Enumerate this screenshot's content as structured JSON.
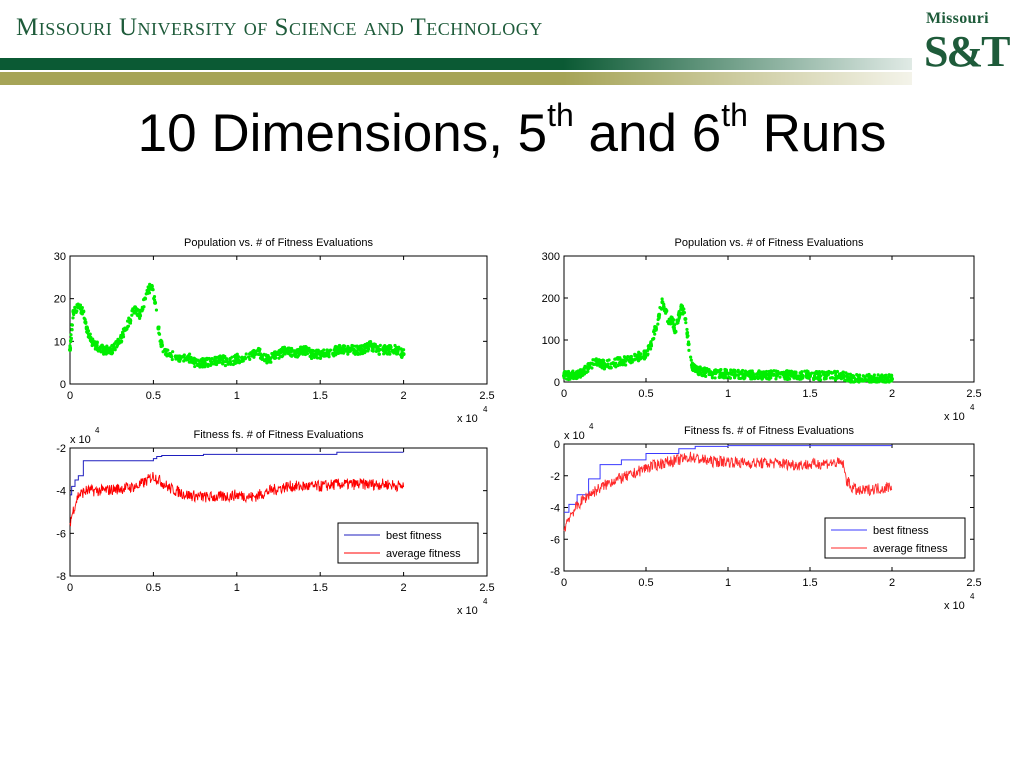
{
  "header": {
    "university": "Missouri University of Science and Technology",
    "logo_top": "Missouri",
    "logo_main": "S&T",
    "colors": {
      "green": "#0b5a34",
      "gold": "#a6a457"
    }
  },
  "title": {
    "prefix": "10 Dimensions, 5",
    "sup1": "th",
    "middle": " and 6",
    "sup2": "th",
    "suffix": " Runs"
  },
  "chart_data": [
    {
      "type": "scatter",
      "title": "Population vs. # of Fitness Evaluations",
      "xlabel": "",
      "ylabel": "",
      "xlim": [
        0,
        2.5
      ],
      "ylim": [
        0,
        30
      ],
      "xticks": [
        "0",
        "0.5",
        "1",
        "1.5",
        "2",
        "2.5"
      ],
      "yticks": [
        "0",
        "10",
        "20",
        "30"
      ],
      "x_multiplier": "x 10",
      "x_multiplier_exp": "4",
      "color": "#00ee00",
      "series": [
        {
          "x": [
            0.0,
            0.02,
            0.05,
            0.08,
            0.1,
            0.13,
            0.16,
            0.2,
            0.25,
            0.3,
            0.33,
            0.36,
            0.39,
            0.42,
            0.45,
            0.47,
            0.49,
            0.51,
            0.53,
            0.55,
            0.57,
            0.6,
            0.65,
            0.7,
            0.72,
            0.75,
            0.8,
            0.85,
            0.9,
            0.95,
            1.0,
            1.05,
            1.1,
            1.13,
            1.15,
            1.2,
            1.25,
            1.3,
            1.35,
            1.4,
            1.45,
            1.5,
            1.55,
            1.6,
            1.65,
            1.7,
            1.75,
            1.8,
            1.85,
            1.9,
            1.95,
            2.0
          ],
          "y": [
            8,
            17,
            18,
            17,
            13,
            10,
            9,
            8,
            8,
            10,
            13,
            15,
            18,
            16,
            20,
            22,
            23,
            19,
            13,
            9,
            8,
            7,
            6,
            6,
            6,
            5,
            5,
            5,
            6,
            5,
            6,
            6,
            7,
            8,
            6,
            6,
            7,
            8,
            7,
            8,
            7,
            7,
            7,
            8,
            8,
            8,
            8,
            9,
            8,
            8,
            8,
            7
          ]
        }
      ]
    },
    {
      "type": "line",
      "title": "Fitness fs. # of Fitness Evaluations",
      "xlabel": "",
      "ylabel": "",
      "xlim": [
        0,
        2.5
      ],
      "ylim": [
        -8,
        -2
      ],
      "xticks": [
        "0",
        "0.5",
        "1",
        "1.5",
        "2",
        "2.5"
      ],
      "yticks": [
        "-8",
        "-6",
        "-4",
        "-2"
      ],
      "x_multiplier": "x 10",
      "x_multiplier_exp": "4",
      "y_multiplier": "x 10",
      "y_multiplier_exp": "4",
      "legend_position": "bottom-right",
      "series": [
        {
          "name": "best fitness",
          "color": "#1f1fbf",
          "x": [
            0.0,
            0.01,
            0.03,
            0.05,
            0.08,
            0.5,
            0.52,
            0.55,
            0.8,
            1.0,
            1.6,
            2.0
          ],
          "y": [
            -4.2,
            -3.8,
            -3.5,
            -3.3,
            -2.6,
            -2.5,
            -2.4,
            -2.35,
            -2.3,
            -2.3,
            -2.2,
            -2.2
          ]
        },
        {
          "name": "average fitness",
          "color": "#ff0000",
          "x": [
            0.0,
            0.02,
            0.05,
            0.1,
            0.2,
            0.3,
            0.4,
            0.45,
            0.5,
            0.55,
            0.6,
            0.7,
            0.8,
            0.9,
            1.0,
            1.1,
            1.2,
            1.3,
            1.4,
            1.5,
            1.6,
            1.7,
            1.8,
            1.9,
            2.0
          ],
          "y": [
            -5.5,
            -4.9,
            -4.2,
            -4.0,
            -4.0,
            -3.9,
            -3.8,
            -3.6,
            -3.3,
            -3.6,
            -3.9,
            -4.2,
            -4.3,
            -4.3,
            -4.2,
            -4.3,
            -4.0,
            -3.8,
            -3.8,
            -3.8,
            -3.7,
            -3.7,
            -3.7,
            -3.7,
            -3.8
          ]
        }
      ]
    },
    {
      "type": "scatter",
      "title": "Population vs. # of Fitness Evaluations",
      "xlabel": "",
      "ylabel": "",
      "xlim": [
        0,
        2.5
      ],
      "ylim": [
        0,
        300
      ],
      "xticks": [
        "0",
        "0.5",
        "1",
        "1.5",
        "2",
        "2.5"
      ],
      "yticks": [
        "0",
        "100",
        "200",
        "300"
      ],
      "x_multiplier": "x 10",
      "x_multiplier_exp": "4",
      "color": "#00ee00",
      "series": [
        {
          "x": [
            0.0,
            0.05,
            0.1,
            0.15,
            0.2,
            0.25,
            0.3,
            0.35,
            0.4,
            0.45,
            0.5,
            0.53,
            0.56,
            0.58,
            0.6,
            0.62,
            0.64,
            0.66,
            0.68,
            0.7,
            0.72,
            0.74,
            0.76,
            0.78,
            0.8,
            0.85,
            0.9,
            1.0,
            1.1,
            1.2,
            1.3,
            1.4,
            1.5,
            1.6,
            1.7,
            1.75,
            1.8,
            1.9,
            2.0
          ],
          "y": [
            15,
            15,
            20,
            35,
            50,
            40,
            45,
            50,
            50,
            60,
            65,
            90,
            130,
            160,
            190,
            170,
            140,
            150,
            120,
            160,
            180,
            150,
            90,
            40,
            30,
            25,
            20,
            20,
            18,
            17,
            17,
            16,
            16,
            15,
            15,
            8,
            8,
            7,
            7
          ]
        }
      ]
    },
    {
      "type": "line",
      "title": "Fitness fs. # of Fitness Evaluations",
      "xlabel": "",
      "ylabel": "",
      "xlim": [
        0,
        2.5
      ],
      "ylim": [
        -8,
        0
      ],
      "xticks": [
        "0",
        "0.5",
        "1",
        "1.5",
        "2",
        "2.5"
      ],
      "yticks": [
        "-8",
        "-6",
        "-4",
        "-2",
        "0"
      ],
      "x_multiplier": "x 10",
      "x_multiplier_exp": "4",
      "y_multiplier": "x 10",
      "y_multiplier_exp": "4",
      "legend_position": "bottom-right",
      "series": [
        {
          "name": "best fitness",
          "color": "#3a3aff",
          "x": [
            0.0,
            0.03,
            0.08,
            0.15,
            0.22,
            0.35,
            0.5,
            0.7,
            0.8,
            1.0,
            1.5,
            2.0
          ],
          "y": [
            -4.3,
            -3.8,
            -3.2,
            -2.2,
            -1.3,
            -1.0,
            -0.6,
            -0.3,
            -0.15,
            -0.1,
            -0.1,
            -0.1
          ]
        },
        {
          "name": "average fitness",
          "color": "#ff2a2a",
          "x": [
            0.0,
            0.02,
            0.05,
            0.1,
            0.15,
            0.2,
            0.3,
            0.4,
            0.5,
            0.6,
            0.7,
            0.78,
            0.8,
            0.9,
            1.0,
            1.1,
            1.2,
            1.3,
            1.4,
            1.5,
            1.6,
            1.7,
            1.72,
            1.75,
            1.8,
            1.85,
            1.9,
            1.95,
            2.0
          ],
          "y": [
            -5.5,
            -4.8,
            -4.3,
            -3.7,
            -3.2,
            -2.9,
            -2.3,
            -2.0,
            -1.5,
            -1.2,
            -1.0,
            -0.8,
            -0.9,
            -1.1,
            -1.1,
            -1.2,
            -1.2,
            -1.2,
            -1.3,
            -1.3,
            -1.2,
            -1.2,
            -2.2,
            -2.7,
            -3.0,
            -2.9,
            -2.8,
            -2.8,
            -2.6
          ]
        }
      ]
    }
  ]
}
